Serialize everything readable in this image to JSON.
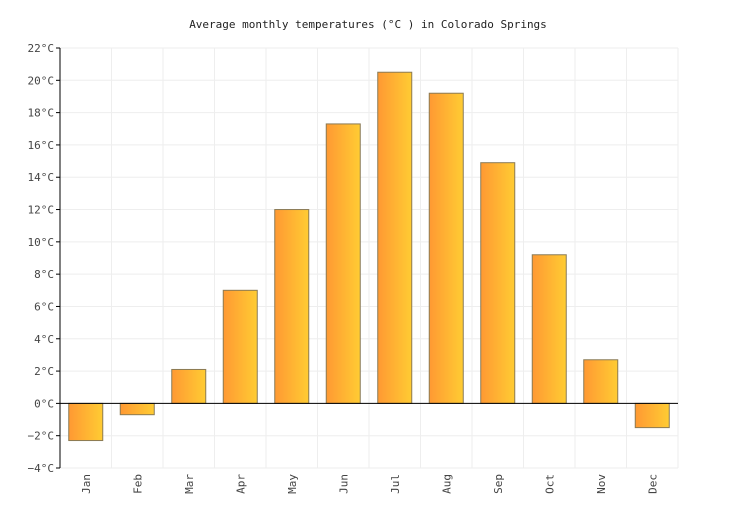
{
  "chart_data": {
    "type": "bar",
    "title": "Average monthly temperatures (°C ) in Colorado Springs",
    "xlabel": "",
    "ylabel": "",
    "categories": [
      "Jan",
      "Feb",
      "Mar",
      "Apr",
      "May",
      "Jun",
      "Jul",
      "Aug",
      "Sep",
      "Oct",
      "Nov",
      "Dec"
    ],
    "series": [
      {
        "values": [
          -2.3,
          -0.7,
          2.1,
          7.0,
          12.0,
          17.3,
          20.5,
          19.2,
          14.9,
          9.2,
          2.7,
          -1.5
        ]
      }
    ],
    "ylim": [
      -4,
      22
    ],
    "yticks": [
      -4,
      -2,
      0,
      2,
      4,
      6,
      8,
      10,
      12,
      14,
      16,
      18,
      20,
      22
    ],
    "ytick_labels": [
      "−4°C",
      "−2°C",
      "0°C",
      "2°C",
      "4°C",
      "6°C",
      "8°C",
      "10°C",
      "12°C",
      "14°C",
      "16°C",
      "18°C",
      "20°C",
      "22°C"
    ],
    "grid": true,
    "legend": "none",
    "colors": {
      "bar_left": "#ff9933",
      "bar_right": "#ffcc33",
      "bar_stroke": "#8a7a55",
      "grid": "#eeeeee",
      "axis": "#000000",
      "zero_line": "#000000"
    }
  }
}
